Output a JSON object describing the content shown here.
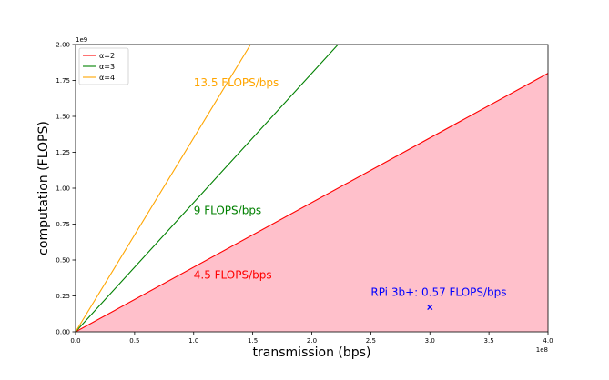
{
  "chart_data": {
    "type": "line",
    "xlabel": "transmission (bps)",
    "ylabel": "computation (FLOPS)",
    "x_offset_label": "1e8",
    "y_offset_label": "1e9",
    "xlim": [
      0,
      400000000
    ],
    "ylim": [
      0,
      2000000000
    ],
    "x_ticks": [
      0,
      50000000,
      100000000,
      150000000,
      200000000,
      250000000,
      300000000,
      350000000,
      400000000
    ],
    "x_tick_labels": [
      "0.0",
      "0.5",
      "1.0",
      "1.5",
      "2.0",
      "2.5",
      "3.0",
      "3.5",
      "4.0"
    ],
    "y_ticks": [
      0,
      250000000,
      500000000,
      750000000,
      1000000000,
      1250000000,
      1500000000,
      1750000000,
      2000000000
    ],
    "y_tick_labels": [
      "0.00",
      "0.25",
      "0.50",
      "0.75",
      "1.00",
      "1.25",
      "1.50",
      "1.75",
      "2.00"
    ],
    "grid": false,
    "legend_position": "top-left",
    "series": [
      {
        "name": "α=2",
        "color": "#ff0000",
        "slope": 4.5,
        "fill": true,
        "fill_color": "#ffc0cb",
        "x": [
          0,
          400000000
        ],
        "y": [
          0,
          1800000000
        ]
      },
      {
        "name": "α=3",
        "color": "#008000",
        "slope": 9,
        "fill": false,
        "x": [
          0,
          222222222
        ],
        "y": [
          0,
          2000000000
        ]
      },
      {
        "name": "α=4",
        "color": "#ffa500",
        "slope": 13.5,
        "fill": false,
        "x": [
          0,
          148148148
        ],
        "y": [
          0,
          2000000000
        ]
      }
    ],
    "points": [
      {
        "label": "RPi 3b+: 0.57 FLOPS/bps",
        "x": 300000000,
        "y": 171000000,
        "color": "#0000ff",
        "marker": "x"
      }
    ],
    "annotations": [
      {
        "text": "13.5 FLOPS/bps",
        "x": 100000000,
        "y": 1710000000,
        "color": "#ffa500"
      },
      {
        "text": "9 FLOPS/bps",
        "x": 100000000,
        "y": 820000000,
        "color": "#008000"
      },
      {
        "text": "4.5 FLOPS/bps",
        "x": 100000000,
        "y": 370000000,
        "color": "#ff0000"
      },
      {
        "text": "RPi 3b+: 0.57 FLOPS/bps",
        "x": 250000000,
        "y": 250000000,
        "color": "#0000ff"
      }
    ]
  }
}
